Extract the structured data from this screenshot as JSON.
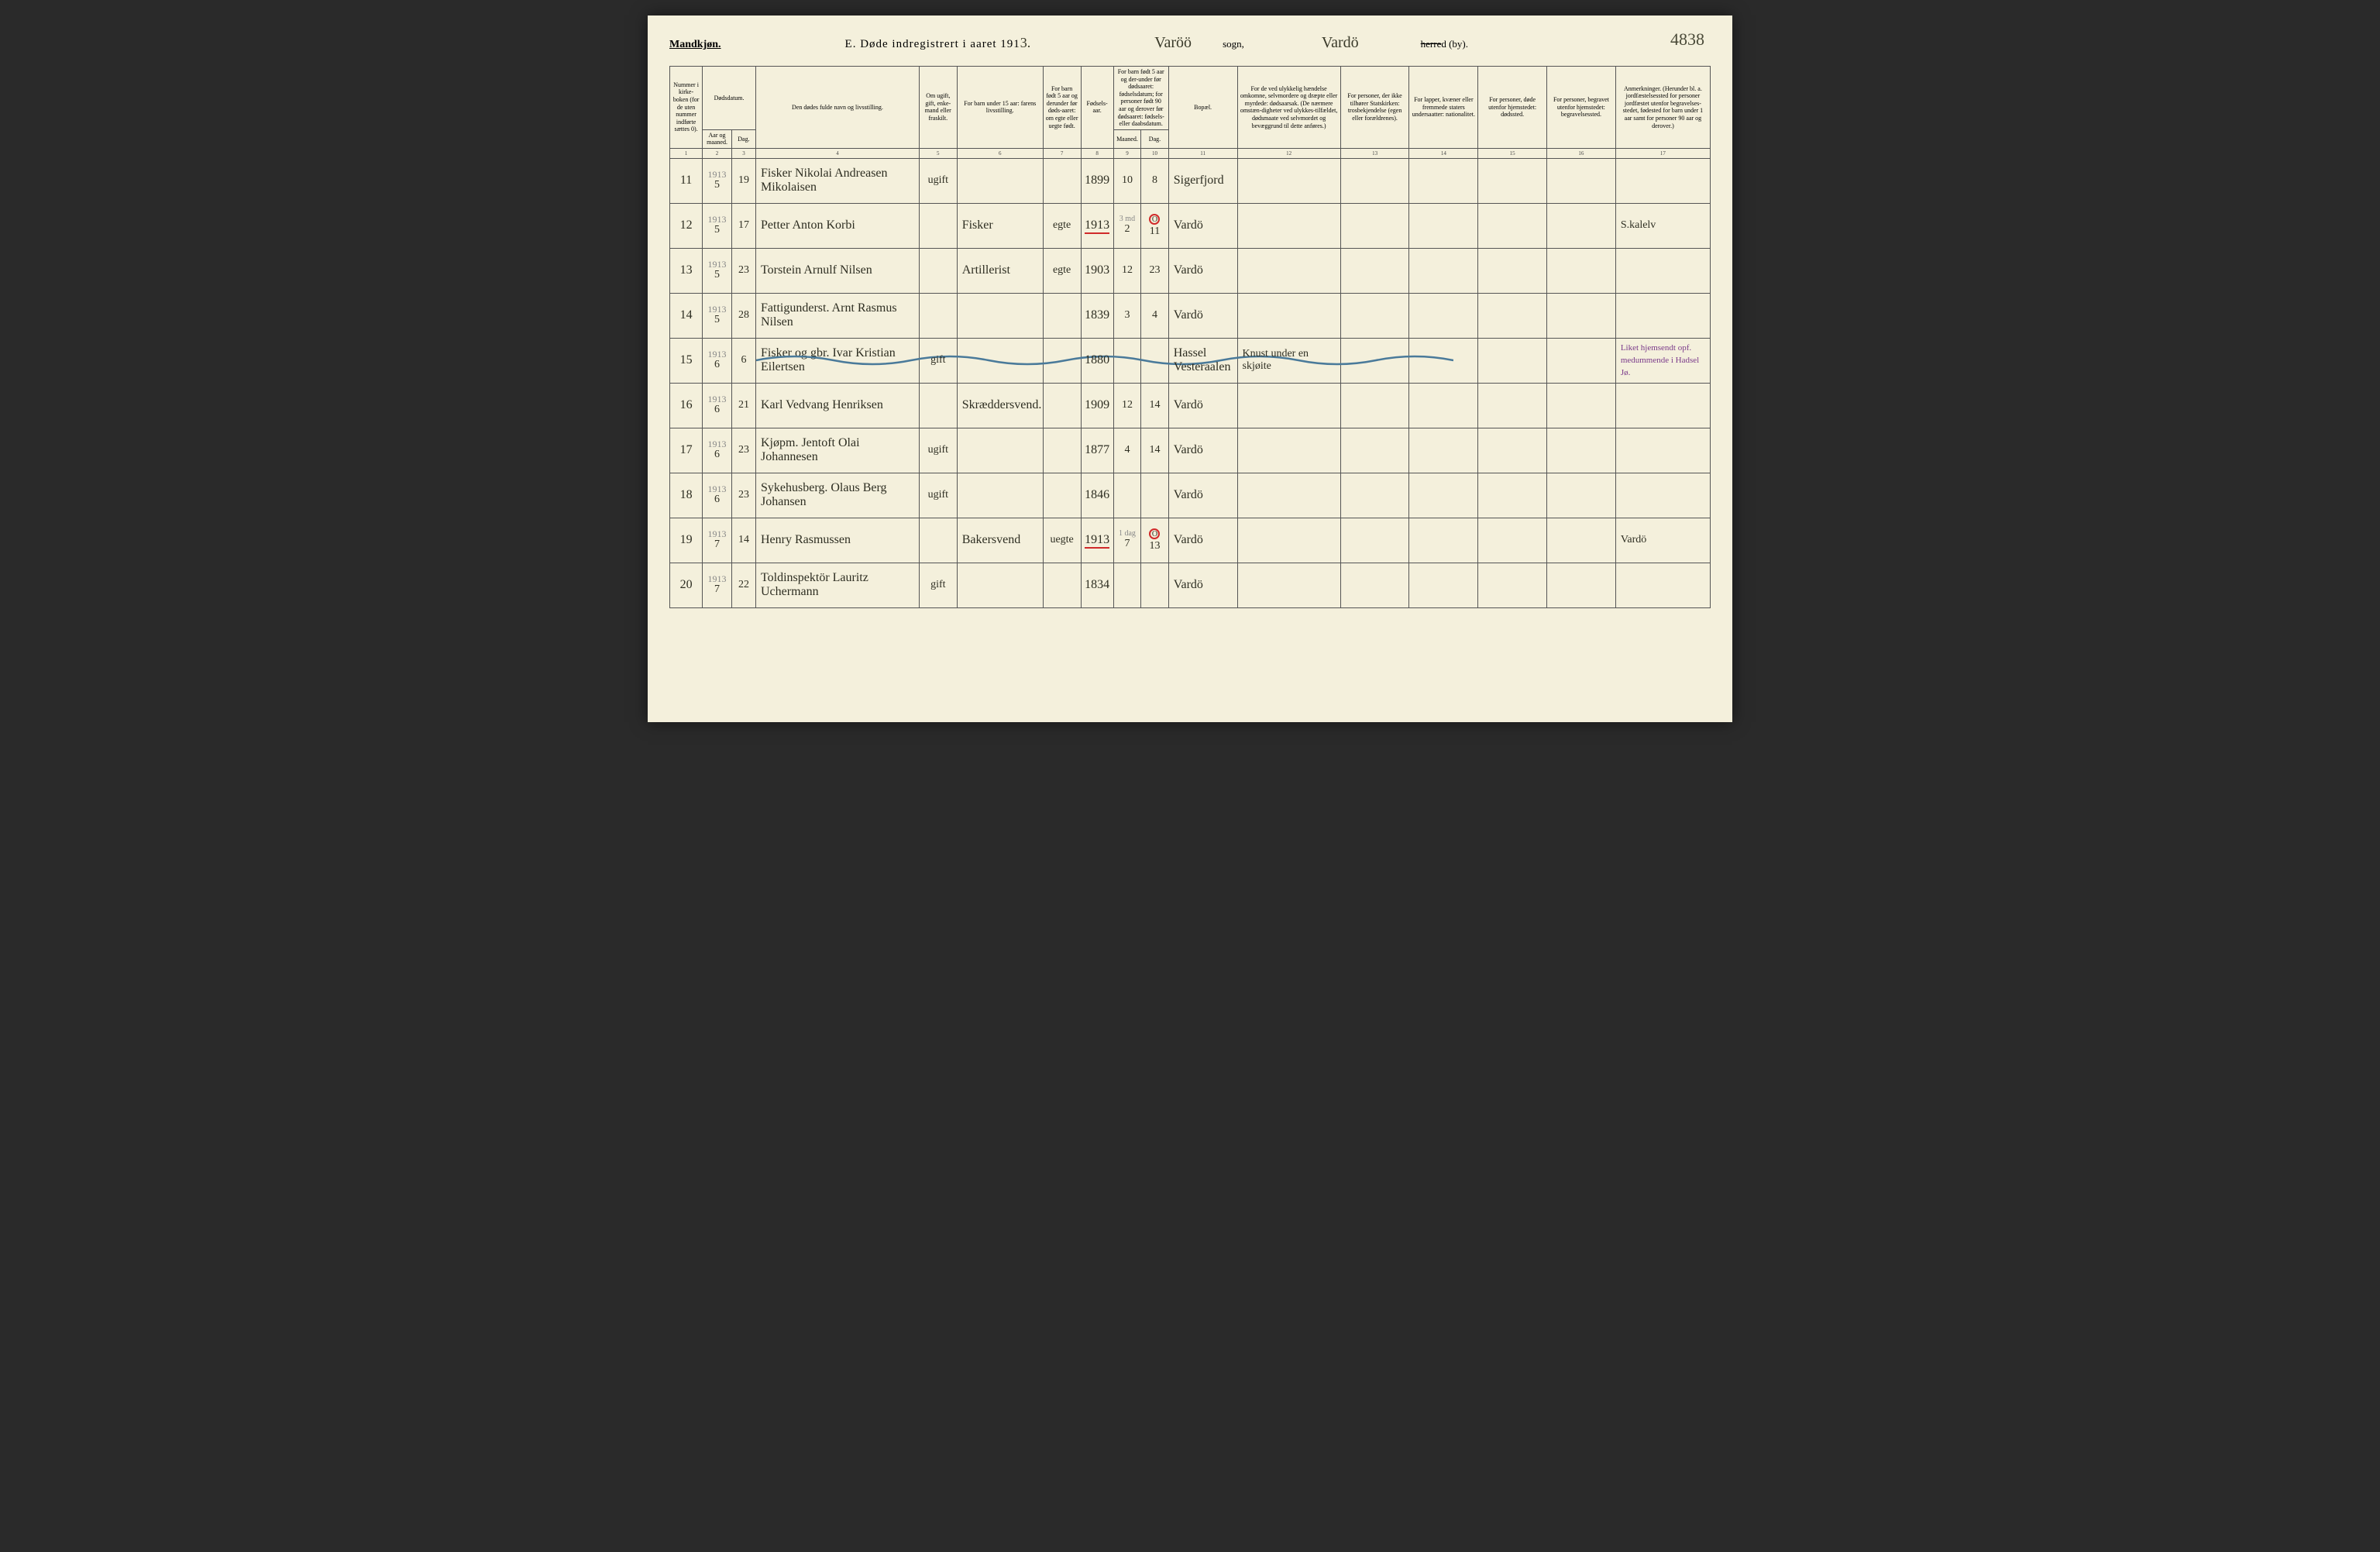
{
  "header": {
    "gender": "Mandkjøn.",
    "title_prefix": "E.  Døde indregistrert i aaret 191",
    "title_year_hand": "3.",
    "sogn_value": "Varöö",
    "sogn_label": "sogn,",
    "herred_value": "Vardö",
    "herred_struck": "herre",
    "herred_suffix": "d (by).",
    "page_number": "4838"
  },
  "columns": {
    "c1": "Nummer i kirke-boken (for de uten nummer indførte sættes 0).",
    "c2_top": "Dødsdatum.",
    "c2a": "Aar og maaned.",
    "c2b": "Dag.",
    "c4": "Den dødes fulde navn og livsstilling.",
    "c5": "Om ugift, gift, enke-mand eller fraskilt.",
    "c6": "For barn under 15 aar: farens livsstilling.",
    "c7": "For barn født 5 aar og derunder før døds-aaret: om egte eller uegte født.",
    "c8": "Fødsels-aar.",
    "c9_top": "For barn født 5 aar og der-under før dødsaaret: fødselsdatum; for personer født 90 aar og derover før dødsaaret: fødsels- eller daabsdatum.",
    "c9a": "Maaned.",
    "c9b": "Dag.",
    "c11": "Bopæl.",
    "c12": "For de ved ulykkelig hændelse omkomne, selvmordere og dræpte eller myrdede: dødsaarsak. (De nærmere omstæn-digheter ved ulykkes-tilfældet, dødsmaate ved selvmordet og bevæggrund til dette anføres.)",
    "c13": "For personer, der ikke tilhører Statskirken: trosbekjendelse (egen eller forældrenes).",
    "c14": "For lapper, kvæner eller fremmede staters undersaatter: nationalitet.",
    "c15": "For personer, døde utenfor hjemstedet: dødssted.",
    "c16": "For personer, begravet utenfor hjemstedet: begravelsessted.",
    "c17": "Anmerkninger. (Herunder bl. a. jordfæstelsessted for personer jordfæstet utenfor begravelses-stedet, fødested for barn under 1 aar samt for personer 90 aar og derover.)"
  },
  "colnums": [
    "1",
    "2",
    "3",
    "4",
    "5",
    "6",
    "7",
    "8",
    "9",
    "10",
    "11",
    "12",
    "13",
    "14",
    "15",
    "16",
    "17"
  ],
  "rows": [
    {
      "num": "11",
      "year": "1913",
      "month": "5",
      "day": "19",
      "name": "Fisker Nikolai Andreasen Mikolaisen",
      "status": "ugift",
      "father": "",
      "legit": "",
      "birth": "1899",
      "bm": "10",
      "bd": "8",
      "place": "Sigerfjord",
      "cause": "",
      "note17": ""
    },
    {
      "num": "12",
      "year": "1913",
      "month": "5",
      "day": "17",
      "name": "Petter Anton Korbi",
      "status": "",
      "father": "Fisker",
      "legit": "egte",
      "birth": "1913",
      "bm_pencil": "3 md",
      "bm": "2",
      "bd_circle": "O",
      "bd": "11",
      "place": "Vardö",
      "cause": "",
      "note17": "S.kalelv",
      "red": true
    },
    {
      "num": "13",
      "year": "1913",
      "month": "5",
      "day": "23",
      "name": "Torstein Arnulf Nilsen",
      "status": "",
      "father": "Artillerist",
      "legit": "egte",
      "birth": "1903",
      "bm": "12",
      "bd": "23",
      "place": "Vardö",
      "cause": "",
      "note17": ""
    },
    {
      "num": "14",
      "year": "1913",
      "month": "5",
      "day": "28",
      "name": "Fattigunderst. Arnt Rasmus Nilsen",
      "status": "",
      "father": "",
      "legit": "",
      "birth": "1839",
      "bm": "3",
      "bd": "4",
      "place": "Vardö",
      "cause": "",
      "note17": ""
    },
    {
      "num": "15",
      "year": "1913",
      "month": "6",
      "day": "6",
      "name": "Fisker og gbr. Ivar Kristian Eilertsen",
      "status": "gift",
      "father": "",
      "legit": "",
      "birth": "1880",
      "bm": "",
      "bd": "",
      "place": "Hassel Vesteraalen",
      "cause": "Knust under en skjøite",
      "note17": "Liket hjemsendt opf. medummende i Hadsel Jø.",
      "wave": true,
      "purple": true
    },
    {
      "num": "16",
      "year": "1913",
      "month": "6",
      "day": "21",
      "name": "Karl Vedvang Henriksen",
      "status": "",
      "father": "Skræddersvend.",
      "legit": "",
      "birth": "1909",
      "bm": "12",
      "bd": "14",
      "place": "Vardö",
      "cause": "",
      "note17": ""
    },
    {
      "num": "17",
      "year": "1913",
      "month": "6",
      "day": "23",
      "name": "Kjøpm. Jentoft Olai Johannesen",
      "status": "ugift",
      "father": "",
      "legit": "",
      "birth": "1877",
      "bm": "4",
      "bd": "14",
      "place": "Vardö",
      "cause": "",
      "note17": ""
    },
    {
      "num": "18",
      "year": "1913",
      "month": "6",
      "day": "23",
      "name": "Sykehusberg. Olaus Berg Johansen",
      "status": "ugift",
      "father": "",
      "legit": "",
      "birth": "1846",
      "bm": "",
      "bd": "",
      "place": "Vardö",
      "cause": "",
      "note17": ""
    },
    {
      "num": "19",
      "year": "1913",
      "month": "7",
      "day": "14",
      "name": "Henry Rasmussen",
      "status": "",
      "father": "Bakersvend",
      "legit": "uegte",
      "birth": "1913",
      "bm_pencil": "1 dag",
      "bm": "7",
      "bd_circle": "O",
      "bd": "13",
      "place": "Vardö",
      "cause": "",
      "note17": "Vardö",
      "red": true
    },
    {
      "num": "20",
      "year": "1913",
      "month": "7",
      "day": "22",
      "name": "Toldinspektör Lauritz Uchermann",
      "status": "gift",
      "father": "",
      "legit": "",
      "birth": "1834",
      "bm": "",
      "bd": "",
      "place": "Vardö",
      "cause": "",
      "note17": ""
    }
  ]
}
